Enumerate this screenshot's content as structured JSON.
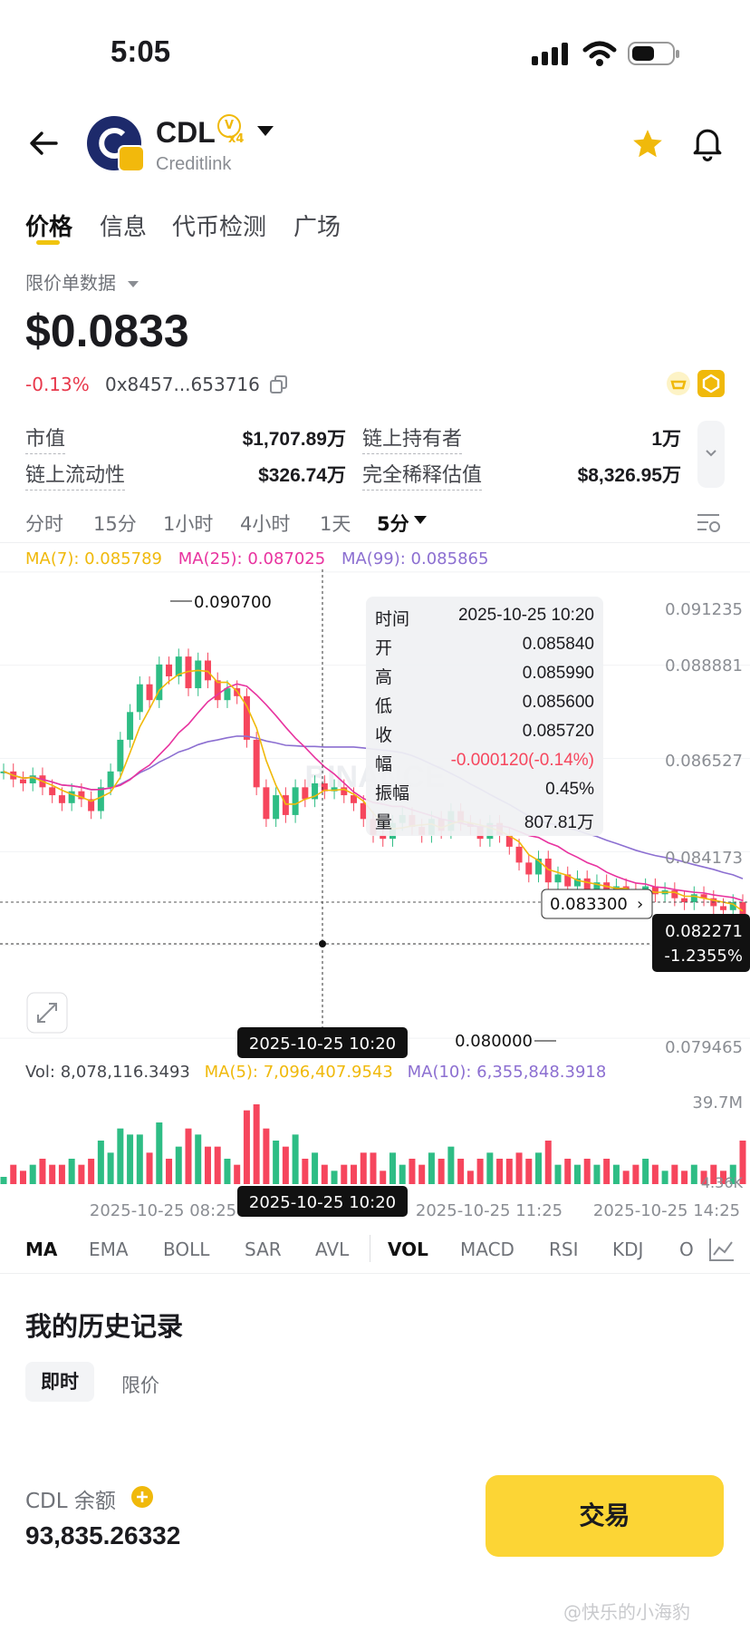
{
  "status": {
    "time": "5:05"
  },
  "header": {
    "symbol": "CDL",
    "badge_v": "V",
    "badge_x4": "x4",
    "name": "Creditlink"
  },
  "tabs": [
    {
      "label": "价格"
    },
    {
      "label": "信息"
    },
    {
      "label": "代币检测"
    },
    {
      "label": "广场"
    }
  ],
  "data_mode": "限价单数据",
  "price": "$0.0833",
  "change": "-0.13%",
  "address": "0x8457...653716",
  "stats": {
    "market_cap_label": "市值",
    "market_cap": "$1,707.89万",
    "holders_label": "链上持有者",
    "holders": "1万",
    "liquidity_label": "链上流动性",
    "liquidity": "$326.74万",
    "fdv_label": "完全稀释估值",
    "fdv": "$8,326.95万"
  },
  "timeframes": [
    "分时",
    "15分",
    "1小时",
    "4小时",
    "1天",
    "5分"
  ],
  "ma_legend": {
    "ma7": "MA(7): 0.085789",
    "ma25": "MA(25): 0.087025",
    "ma99": "MA(99): 0.085865"
  },
  "colors": {
    "up": "#2ebd85",
    "down": "#f6465d",
    "ma7": "#f0b90b",
    "ma25": "#e8339f",
    "ma99": "#8c6fd1",
    "accent": "#fcd535"
  },
  "chart_data": {
    "type": "candlestick",
    "y_ticks": [
      "0.091235",
      "0.088881",
      "0.086527",
      "0.084173",
      "0.079465"
    ],
    "high_label": "0.090700",
    "low_label": "0.080000",
    "current_price_label": "0.083300",
    "last_price": "0.082271",
    "last_change": "-1.2355%",
    "crosshair_time": "2025-10-25 10:20",
    "tooltip": {
      "time_k": "时间",
      "time": "2025-10-25 10:20",
      "open_k": "开",
      "open": "0.085840",
      "high_k": "高",
      "high": "0.085990",
      "low_k": "低",
      "low": "0.085600",
      "close_k": "收",
      "close": "0.085720",
      "range_k": "幅",
      "range": "-0.000120(-0.14%)",
      "amp_k": "振幅",
      "amp": "0.45%",
      "vol_k": "量",
      "vol": "807.81万"
    },
    "watermark": "BINANCE",
    "volume_legend": {
      "vol": "Vol: 8,078,116.3493",
      "ma5": "MA(5): 7,096,407.9543",
      "ma10": "MA(10): 6,355,848.3918"
    },
    "volume_ticks": [
      "39.7M",
      "4.36K"
    ],
    "x_labels": [
      "2025-10-25 08:25",
      "2025-10-25 11:25",
      "2025-10-25 14:25"
    ],
    "close_series": [
      0.0862,
      0.086,
      0.0859,
      0.0861,
      0.0858,
      0.0856,
      0.0854,
      0.0857,
      0.0855,
      0.0852,
      0.0858,
      0.0862,
      0.087,
      0.0877,
      0.0884,
      0.088,
      0.0889,
      0.0886,
      0.0891,
      0.0883,
      0.089,
      0.0885,
      0.088,
      0.0883,
      0.0881,
      0.087,
      0.0858,
      0.085,
      0.0856,
      0.0851,
      0.0858,
      0.0855,
      0.0859,
      0.0857,
      0.0858,
      0.0856,
      0.0854,
      0.085,
      0.0846,
      0.0845,
      0.0849,
      0.0851,
      0.0848,
      0.0846,
      0.085,
      0.0847,
      0.0852,
      0.0849,
      0.0848,
      0.0845,
      0.0849,
      0.0846,
      0.0843,
      0.0839,
      0.0836,
      0.084,
      0.0834,
      0.0836,
      0.0833,
      0.0835,
      0.0832,
      0.0834,
      0.0831,
      0.0833,
      0.0832,
      0.083,
      0.0833,
      0.0831,
      0.0832,
      0.083,
      0.0829,
      0.0831,
      0.083,
      0.0828,
      0.0827,
      0.0829,
      0.0823
    ]
  },
  "indicators": [
    "MA",
    "EMA",
    "BOLL",
    "SAR",
    "AVL",
    "VOL",
    "MACD",
    "RSI",
    "KDJ",
    "O"
  ],
  "history": {
    "title": "我的历史记录",
    "tab_instant": "即时",
    "tab_limit": "限价"
  },
  "balance": {
    "label": "CDL 余额",
    "value": "93,835.26332"
  },
  "trade_button": "交易",
  "footer_watermark": "@快乐的小海豹"
}
